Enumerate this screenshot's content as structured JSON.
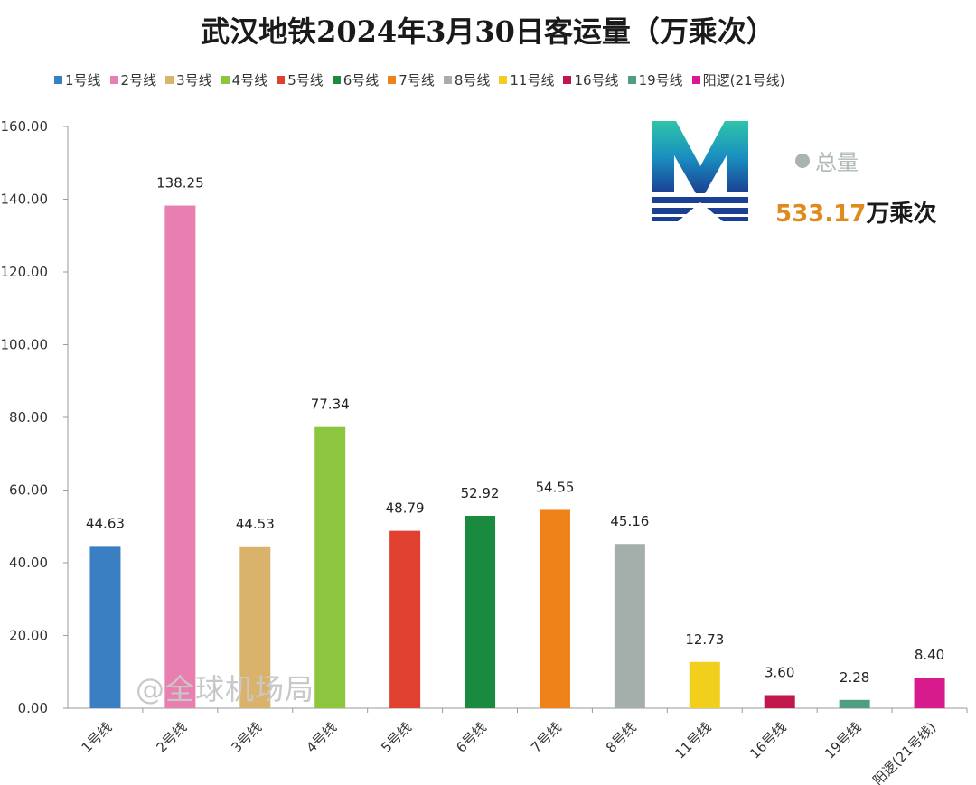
{
  "chart_data": {
    "type": "bar",
    "title": "武汉地铁2024年3月30日客运量（万乘次）",
    "categories": [
      "1号线",
      "2号线",
      "3号线",
      "4号线",
      "5号线",
      "6号线",
      "7号线",
      "8号线",
      "11号线",
      "16号线",
      "19号线",
      "阳逻(21号线)"
    ],
    "values": [
      44.63,
      138.25,
      44.53,
      77.34,
      48.79,
      52.92,
      54.55,
      45.16,
      12.73,
      3.6,
      2.28,
      8.4
    ],
    "value_labels": [
      "44.63",
      "138.25",
      "44.53",
      "77.34",
      "48.79",
      "52.92",
      "54.55",
      "45.16",
      "12.73",
      "3.60",
      "2.28",
      "8.40"
    ],
    "colors": [
      "#3a7fc1",
      "#e87fb0",
      "#d9b36c",
      "#8cc63f",
      "#e04030",
      "#1a8a3e",
      "#ee8218",
      "#a4afac",
      "#f2cf1c",
      "#c0184a",
      "#4f9e80",
      "#d81b8c"
    ],
    "ylim": [
      0,
      160
    ],
    "yticks": [
      "0.00",
      "20.00",
      "40.00",
      "60.00",
      "80.00",
      "100.00",
      "120.00",
      "140.00",
      "160.00"
    ],
    "ytick_values": [
      0,
      20,
      40,
      60,
      80,
      100,
      120,
      140,
      160
    ],
    "legend_position": "top",
    "grid": false
  },
  "total": {
    "label": "总量",
    "value": "533.17",
    "unit": "万乘次"
  },
  "watermark": "@全球机场局",
  "logo_icon": "wuhan-metro-logo"
}
